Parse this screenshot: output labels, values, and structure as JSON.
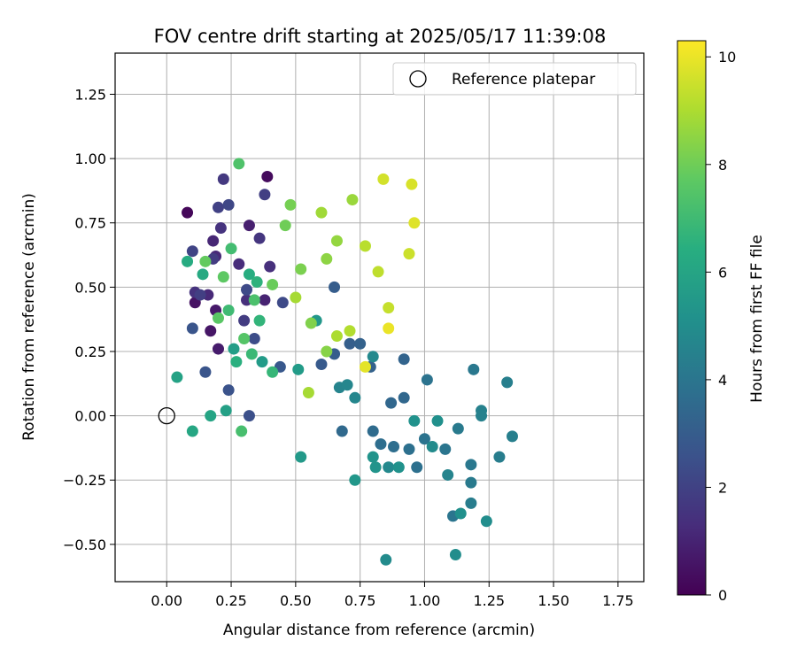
{
  "chart_data": {
    "type": "scatter",
    "title": "FOV centre drift starting at 2025/05/17 11:39:08",
    "xlabel": "Angular distance from reference (arcmin)",
    "ylabel": "Rotation from reference (arcmin)",
    "xlim": [
      -0.2,
      1.85
    ],
    "ylim": [
      -0.645,
      1.41
    ],
    "xticks": [
      0.0,
      0.25,
      0.5,
      0.75,
      1.0,
      1.25,
      1.5,
      1.75
    ],
    "xtick_labels": [
      "0.00",
      "0.25",
      "0.50",
      "0.75",
      "1.00",
      "1.25",
      "1.50",
      "1.75"
    ],
    "yticks": [
      -0.5,
      -0.25,
      0.0,
      0.25,
      0.5,
      0.75,
      1.0,
      1.25
    ],
    "ytick_labels": [
      "−0.50",
      "−0.25",
      "0.00",
      "0.25",
      "0.50",
      "0.75",
      "1.00",
      "1.25"
    ],
    "grid": true,
    "legend": {
      "placement": "top-right",
      "entries": [
        "Reference platepar"
      ]
    },
    "reference_point": {
      "x": 0.0,
      "y": 0.0
    },
    "colorbar": {
      "label": "Hours from first FF file",
      "min": 0,
      "max": 10.3,
      "ticks": [
        0,
        2,
        4,
        6,
        8,
        10
      ],
      "tick_labels": [
        "0",
        "2",
        "4",
        "6",
        "8",
        "10"
      ],
      "colormap": "viridis"
    },
    "series": [
      {
        "points": [
          [
            0.08,
            0.79,
            0.2
          ],
          [
            0.39,
            0.93,
            0.3
          ],
          [
            0.11,
            0.44,
            0.5
          ],
          [
            0.17,
            0.33,
            0.6
          ],
          [
            0.19,
            0.41,
            0.7
          ],
          [
            0.2,
            0.26,
            0.8
          ],
          [
            0.32,
            0.74,
            0.9
          ],
          [
            0.38,
            0.45,
            1.0
          ],
          [
            0.18,
            0.68,
            1.1
          ],
          [
            0.16,
            0.47,
            1.2
          ],
          [
            0.19,
            0.62,
            1.2
          ],
          [
            0.28,
            0.59,
            1.3
          ],
          [
            0.31,
            0.45,
            1.4
          ],
          [
            0.4,
            0.58,
            1.4
          ],
          [
            0.21,
            0.73,
            1.5
          ],
          [
            0.11,
            0.48,
            1.5
          ],
          [
            0.36,
            0.69,
            1.6
          ],
          [
            0.22,
            0.92,
            1.7
          ],
          [
            0.18,
            0.61,
            1.8
          ],
          [
            0.3,
            0.37,
            1.8
          ],
          [
            0.13,
            0.47,
            1.9
          ],
          [
            0.38,
            0.86,
            1.9
          ],
          [
            0.2,
            0.81,
            2.0
          ],
          [
            0.1,
            0.64,
            2.1
          ],
          [
            0.24,
            0.82,
            2.2
          ],
          [
            0.31,
            0.49,
            2.3
          ],
          [
            0.45,
            0.44,
            2.3
          ],
          [
            0.34,
            0.3,
            2.4
          ],
          [
            0.32,
            0.0,
            2.5
          ],
          [
            0.24,
            0.1,
            2.6
          ],
          [
            0.15,
            0.17,
            2.7
          ],
          [
            0.1,
            0.34,
            2.7
          ],
          [
            0.44,
            0.19,
            2.8
          ],
          [
            0.6,
            0.2,
            2.9
          ],
          [
            0.65,
            0.24,
            3.0
          ],
          [
            0.65,
            0.5,
            3.0
          ],
          [
            0.71,
            0.28,
            3.1
          ],
          [
            0.75,
            0.28,
            3.2
          ],
          [
            0.79,
            0.19,
            3.2
          ],
          [
            0.92,
            0.22,
            3.3
          ],
          [
            0.87,
            0.05,
            3.4
          ],
          [
            0.92,
            0.07,
            3.4
          ],
          [
            0.68,
            -0.06,
            3.5
          ],
          [
            0.8,
            -0.06,
            3.6
          ],
          [
            0.83,
            -0.11,
            3.7
          ],
          [
            0.88,
            -0.12,
            3.7
          ],
          [
            0.94,
            -0.13,
            3.8
          ],
          [
            0.97,
            -0.2,
            3.8
          ],
          [
            1.0,
            -0.09,
            3.9
          ],
          [
            1.01,
            0.14,
            3.9
          ],
          [
            1.08,
            -0.13,
            4.0
          ],
          [
            1.11,
            -0.39,
            4.0
          ],
          [
            1.18,
            -0.19,
            4.1
          ],
          [
            1.19,
            0.18,
            4.1
          ],
          [
            1.18,
            -0.26,
            4.2
          ],
          [
            1.13,
            -0.05,
            4.2
          ],
          [
            1.18,
            -0.34,
            4.3
          ],
          [
            1.29,
            -0.16,
            4.3
          ],
          [
            1.32,
            0.13,
            4.4
          ],
          [
            1.34,
            -0.08,
            4.4
          ],
          [
            1.22,
            0.02,
            4.5
          ],
          [
            1.22,
            0.0,
            4.5
          ],
          [
            1.09,
            -0.23,
            4.6
          ],
          [
            0.67,
            0.11,
            4.6
          ],
          [
            0.7,
            0.12,
            4.7
          ],
          [
            0.73,
            0.07,
            4.7
          ],
          [
            0.8,
            0.23,
            4.8
          ],
          [
            0.86,
            -0.2,
            4.8
          ],
          [
            0.85,
            -0.56,
            4.9
          ],
          [
            1.03,
            -0.12,
            4.9
          ],
          [
            1.12,
            -0.54,
            5.0
          ],
          [
            1.24,
            -0.41,
            5.0
          ],
          [
            1.14,
            -0.38,
            5.1
          ],
          [
            1.05,
            -0.02,
            5.1
          ],
          [
            0.96,
            -0.02,
            5.2
          ],
          [
            0.9,
            -0.2,
            5.2
          ],
          [
            0.81,
            -0.2,
            5.3
          ],
          [
            0.8,
            -0.16,
            5.3
          ],
          [
            0.73,
            -0.25,
            5.4
          ],
          [
            0.58,
            0.37,
            5.4
          ],
          [
            0.52,
            -0.16,
            5.5
          ],
          [
            0.51,
            0.18,
            5.6
          ],
          [
            0.37,
            0.21,
            5.6
          ],
          [
            0.26,
            0.26,
            5.7
          ],
          [
            0.23,
            0.02,
            5.8
          ],
          [
            0.04,
            0.15,
            5.9
          ],
          [
            0.17,
            0.0,
            6.0
          ],
          [
            0.1,
            -0.06,
            6.1
          ],
          [
            0.14,
            0.55,
            6.2
          ],
          [
            0.08,
            0.6,
            6.3
          ],
          [
            0.32,
            0.55,
            6.4
          ],
          [
            0.27,
            0.21,
            6.5
          ],
          [
            0.35,
            0.52,
            6.6
          ],
          [
            0.36,
            0.37,
            6.7
          ],
          [
            0.41,
            0.17,
            6.8
          ],
          [
            0.33,
            0.24,
            6.9
          ],
          [
            0.24,
            0.41,
            7.0
          ],
          [
            0.25,
            0.65,
            7.1
          ],
          [
            0.29,
            -0.06,
            7.2
          ],
          [
            0.34,
            0.45,
            7.3
          ],
          [
            0.28,
            0.98,
            7.4
          ],
          [
            0.3,
            0.3,
            7.5
          ],
          [
            0.2,
            0.38,
            7.6
          ],
          [
            0.22,
            0.54,
            7.7
          ],
          [
            0.15,
            0.6,
            7.8
          ],
          [
            0.41,
            0.51,
            7.9
          ],
          [
            0.46,
            0.74,
            8.0
          ],
          [
            0.48,
            0.82,
            8.1
          ],
          [
            0.52,
            0.57,
            8.2
          ],
          [
            0.56,
            0.36,
            8.3
          ],
          [
            0.62,
            0.25,
            8.4
          ],
          [
            0.62,
            0.61,
            8.5
          ],
          [
            0.66,
            0.68,
            8.6
          ],
          [
            0.72,
            0.84,
            8.7
          ],
          [
            0.6,
            0.79,
            8.8
          ],
          [
            0.5,
            0.46,
            8.9
          ],
          [
            0.55,
            0.09,
            8.9
          ],
          [
            0.66,
            0.31,
            9.0
          ],
          [
            0.71,
            0.33,
            9.1
          ],
          [
            0.77,
            0.66,
            9.2
          ],
          [
            0.82,
            0.56,
            9.3
          ],
          [
            0.86,
            0.42,
            9.4
          ],
          [
            0.94,
            0.63,
            9.5
          ],
          [
            0.84,
            0.92,
            9.6
          ],
          [
            0.95,
            0.9,
            9.7
          ],
          [
            0.96,
            0.75,
            9.8
          ],
          [
            0.77,
            0.19,
            9.9
          ],
          [
            0.86,
            0.34,
            10.0
          ]
        ]
      }
    ]
  }
}
